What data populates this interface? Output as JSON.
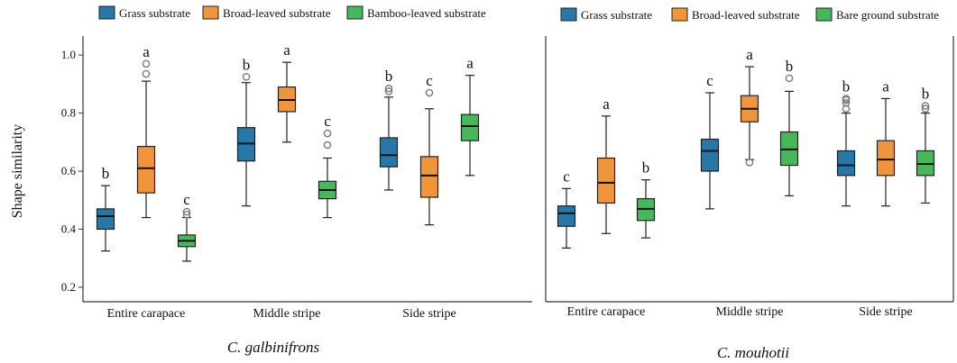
{
  "colors": {
    "grass": "#2678a6",
    "broad": "#f1953a",
    "green": "#46b85a",
    "median": "#111111",
    "outlier": "#7a7a7a",
    "axis": "#333333"
  },
  "chart_data": [
    {
      "type": "box",
      "title": "C. galbinifrons",
      "ylabel": "Shape similarity",
      "ylim": [
        0.15,
        1.05
      ],
      "yticks": [
        "0.2",
        "0.4",
        "0.6",
        "0.8",
        "1.0"
      ],
      "categories": [
        "Entire carapace",
        "Middle stripe",
        "Side stripe"
      ],
      "legend": [
        "Grass substrate",
        "Broad-leaved substrate",
        "Bamboo-leaved substrate"
      ],
      "legend_position": "top",
      "series": [
        {
          "name": "Grass substrate",
          "color_key": "grass",
          "boxes": [
            {
              "min": 0.325,
              "q1": 0.4,
              "median": 0.445,
              "q3": 0.47,
              "max": 0.55,
              "outliers": [],
              "letter": "b"
            },
            {
              "min": 0.48,
              "q1": 0.635,
              "median": 0.695,
              "q3": 0.75,
              "max": 0.905,
              "outliers": [
                0.925
              ],
              "letter": "b"
            },
            {
              "min": 0.535,
              "q1": 0.615,
              "median": 0.655,
              "q3": 0.715,
              "max": 0.855,
              "outliers": [
                0.875,
                0.885
              ],
              "letter": "b"
            }
          ]
        },
        {
          "name": "Broad-leaved substrate",
          "color_key": "broad",
          "boxes": [
            {
              "min": 0.44,
              "q1": 0.525,
              "median": 0.61,
              "q3": 0.685,
              "max": 0.91,
              "outliers": [
                0.935,
                0.97
              ],
              "letter": "a"
            },
            {
              "min": 0.7,
              "q1": 0.805,
              "median": 0.845,
              "q3": 0.89,
              "max": 0.975,
              "outliers": [],
              "letter": "a"
            },
            {
              "min": 0.415,
              "q1": 0.51,
              "median": 0.585,
              "q3": 0.65,
              "max": 0.815,
              "outliers": [
                0.87
              ],
              "letter": "c"
            }
          ]
        },
        {
          "name": "Bamboo-leaved substrate",
          "color_key": "green",
          "boxes": [
            {
              "min": 0.29,
              "q1": 0.34,
              "median": 0.36,
              "q3": 0.38,
              "max": 0.44,
              "outliers": [
                0.45,
                0.46
              ],
              "letter": "c"
            },
            {
              "min": 0.44,
              "q1": 0.505,
              "median": 0.535,
              "q3": 0.565,
              "max": 0.645,
              "outliers": [
                0.69,
                0.73
              ],
              "letter": "c"
            },
            {
              "min": 0.585,
              "q1": 0.705,
              "median": 0.755,
              "q3": 0.795,
              "max": 0.93,
              "outliers": [],
              "letter": "a"
            }
          ]
        }
      ]
    },
    {
      "type": "box",
      "title": "C. mouhotii",
      "ylim": [
        0.15,
        1.05
      ],
      "categories": [
        "Entire carapace",
        "Middle stripe",
        "Side stripe"
      ],
      "legend": [
        "Grass substrate",
        "Broad-leaved substrate",
        "Bare ground substrate"
      ],
      "legend_position": "top",
      "series": [
        {
          "name": "Grass substrate",
          "color_key": "grass",
          "boxes": [
            {
              "min": 0.335,
              "q1": 0.41,
              "median": 0.455,
              "q3": 0.48,
              "max": 0.54,
              "outliers": [],
              "letter": "c"
            },
            {
              "min": 0.47,
              "q1": 0.6,
              "median": 0.67,
              "q3": 0.71,
              "max": 0.87,
              "outliers": [],
              "letter": "c"
            },
            {
              "min": 0.48,
              "q1": 0.585,
              "median": 0.62,
              "q3": 0.67,
              "max": 0.8,
              "outliers": [
                0.815,
                0.835,
                0.845,
                0.85
              ],
              "letter": "b"
            }
          ]
        },
        {
          "name": "Broad-leaved substrate",
          "color_key": "broad",
          "boxes": [
            {
              "min": 0.385,
              "q1": 0.49,
              "median": 0.56,
              "q3": 0.645,
              "max": 0.79,
              "outliers": [],
              "letter": "a"
            },
            {
              "min": 0.64,
              "q1": 0.77,
              "median": 0.815,
              "q3": 0.86,
              "max": 0.96,
              "outliers": [
                0.63
              ],
              "letter": "a"
            },
            {
              "min": 0.48,
              "q1": 0.585,
              "median": 0.64,
              "q3": 0.705,
              "max": 0.85,
              "outliers": [],
              "letter": "a"
            }
          ]
        },
        {
          "name": "Bare ground substrate",
          "color_key": "green",
          "boxes": [
            {
              "min": 0.37,
              "q1": 0.43,
              "median": 0.47,
              "q3": 0.505,
              "max": 0.57,
              "outliers": [],
              "letter": "b"
            },
            {
              "min": 0.515,
              "q1": 0.62,
              "median": 0.675,
              "q3": 0.735,
              "max": 0.875,
              "outliers": [
                0.92
              ],
              "letter": "b"
            },
            {
              "min": 0.49,
              "q1": 0.585,
              "median": 0.625,
              "q3": 0.67,
              "max": 0.8,
              "outliers": [
                0.815,
                0.825
              ],
              "letter": "b"
            }
          ]
        }
      ]
    }
  ]
}
